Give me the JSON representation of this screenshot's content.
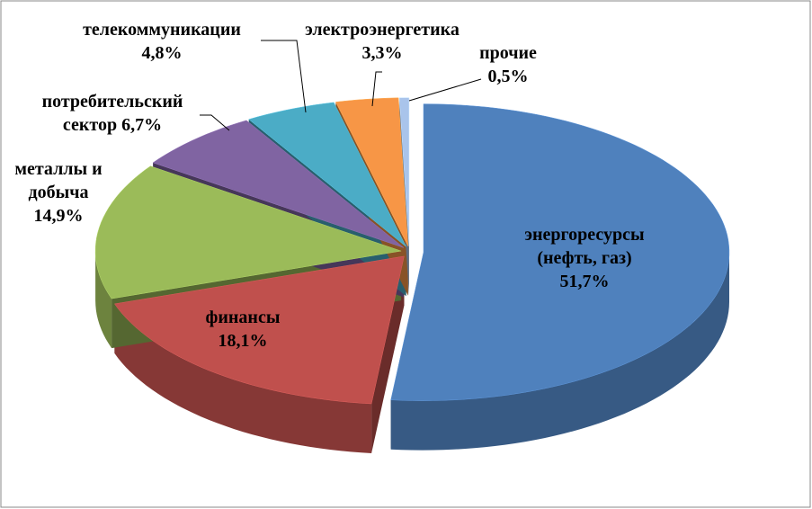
{
  "chart_data": {
    "type": "pie",
    "categories": [
      "энергоресурсы (нефть, газ)",
      "финансы",
      "металлы и добыча",
      "потребительский сектор",
      "телекоммуникации",
      "электроэнергетика",
      "прочие"
    ],
    "values": [
      51.7,
      18.1,
      14.9,
      6.7,
      4.8,
      3.3,
      0.5
    ],
    "value_labels": [
      "51,7%",
      "18,1%",
      "14,9%",
      "6,7%",
      "4,8%",
      "3,3%",
      "0,5%"
    ],
    "colors": [
      "#4f81bd",
      "#c0504d",
      "#9bbb59",
      "#8064a2",
      "#4bacc6",
      "#f79646",
      "#a9c4eb"
    ]
  }
}
